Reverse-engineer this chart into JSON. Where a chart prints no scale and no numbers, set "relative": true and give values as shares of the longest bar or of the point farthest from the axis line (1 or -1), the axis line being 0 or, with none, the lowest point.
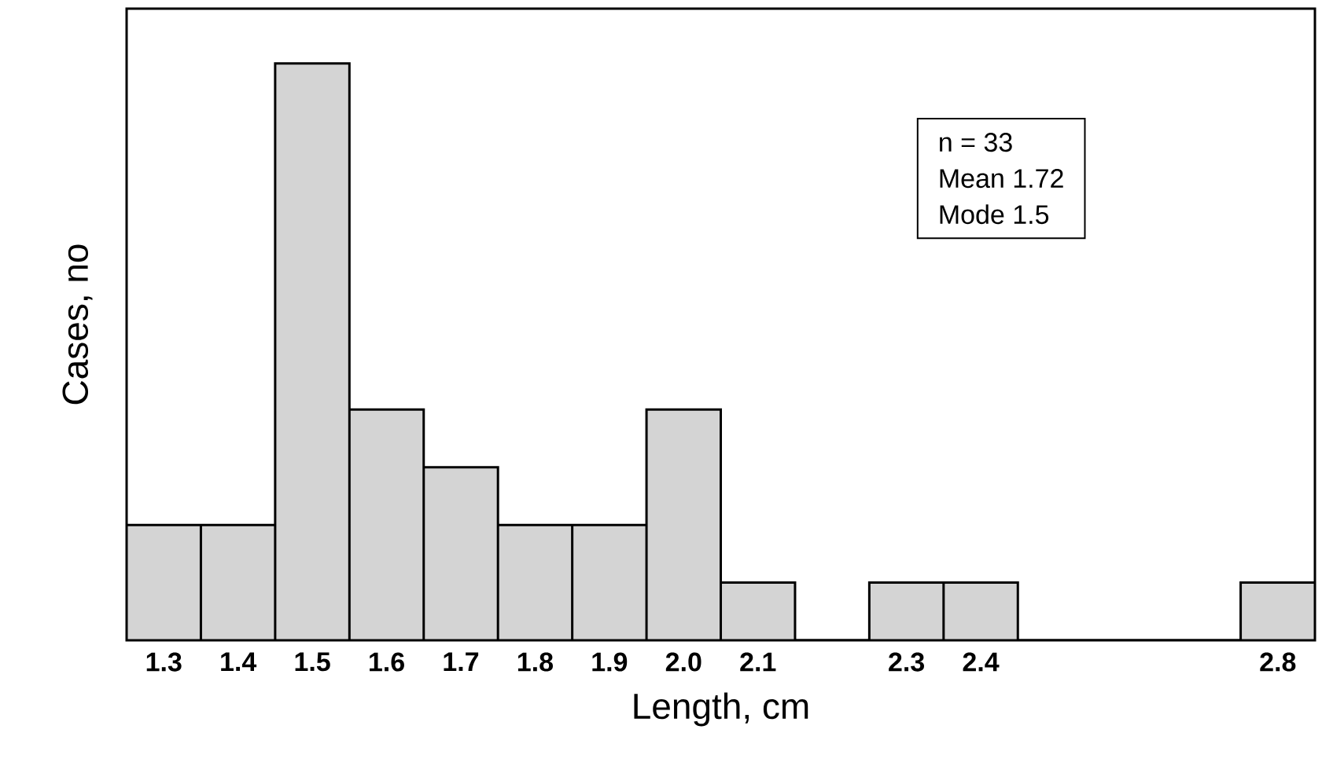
{
  "chart_data": {
    "type": "bar",
    "xlabel": "Length, cm",
    "ylabel": "Cases, no",
    "categories": [
      "1.3",
      "1.4",
      "1.5",
      "1.6",
      "1.7",
      "1.8",
      "1.9",
      "2.0",
      "2.1",
      null,
      "2.3",
      "2.4",
      null,
      null,
      null,
      "2.8"
    ],
    "values": [
      0.2,
      0.2,
      1,
      0.4,
      0.3,
      0.2,
      0.2,
      0.4,
      0.1,
      0,
      0.1,
      0.1,
      0,
      0,
      0,
      0.1
    ],
    "relative": true,
    "color": "#d4d4d4",
    "annotations": [
      "n = 33",
      "Mean 1.72",
      "Mode 1.5"
    ]
  }
}
